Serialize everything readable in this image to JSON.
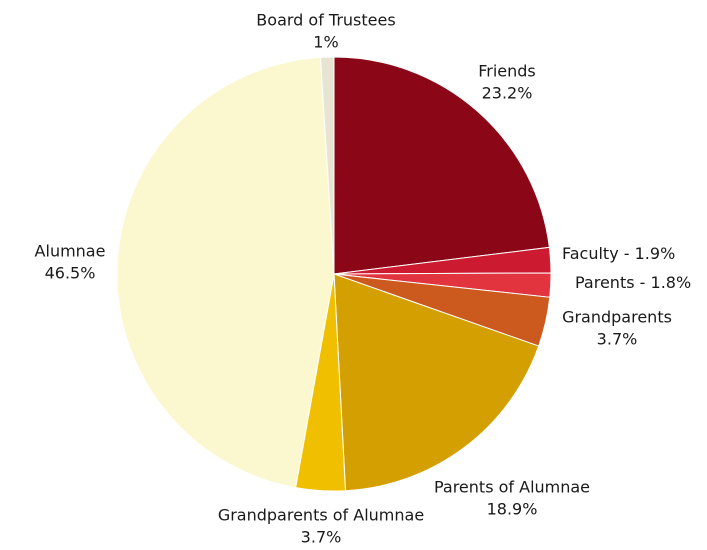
{
  "chart_data": {
    "type": "pie",
    "categories": [
      "Friends",
      "Faculty",
      "Parents",
      "Grandparents",
      "Parents of Alumnae",
      "Grandparents of Alumnae",
      "Alumnae",
      "Board of Trustees"
    ],
    "values": [
      23.2,
      1.9,
      1.8,
      3.7,
      18.9,
      3.7,
      46.5,
      1
    ],
    "value_labels": [
      "23.2%",
      "1.9%",
      "1.8%",
      "3.7%",
      "18.9%",
      "3.7%",
      "46.5%",
      "1%"
    ],
    "colors": [
      "#8b0718",
      "#cc1a30",
      "#e2343f",
      "#cc5a1e",
      "#d49f00",
      "#f0c000",
      "#fbf8cf",
      "#e8e4d4"
    ],
    "inline_labels": [
      false,
      true,
      true,
      false,
      false,
      false,
      false,
      false
    ],
    "label_separator": " - "
  }
}
